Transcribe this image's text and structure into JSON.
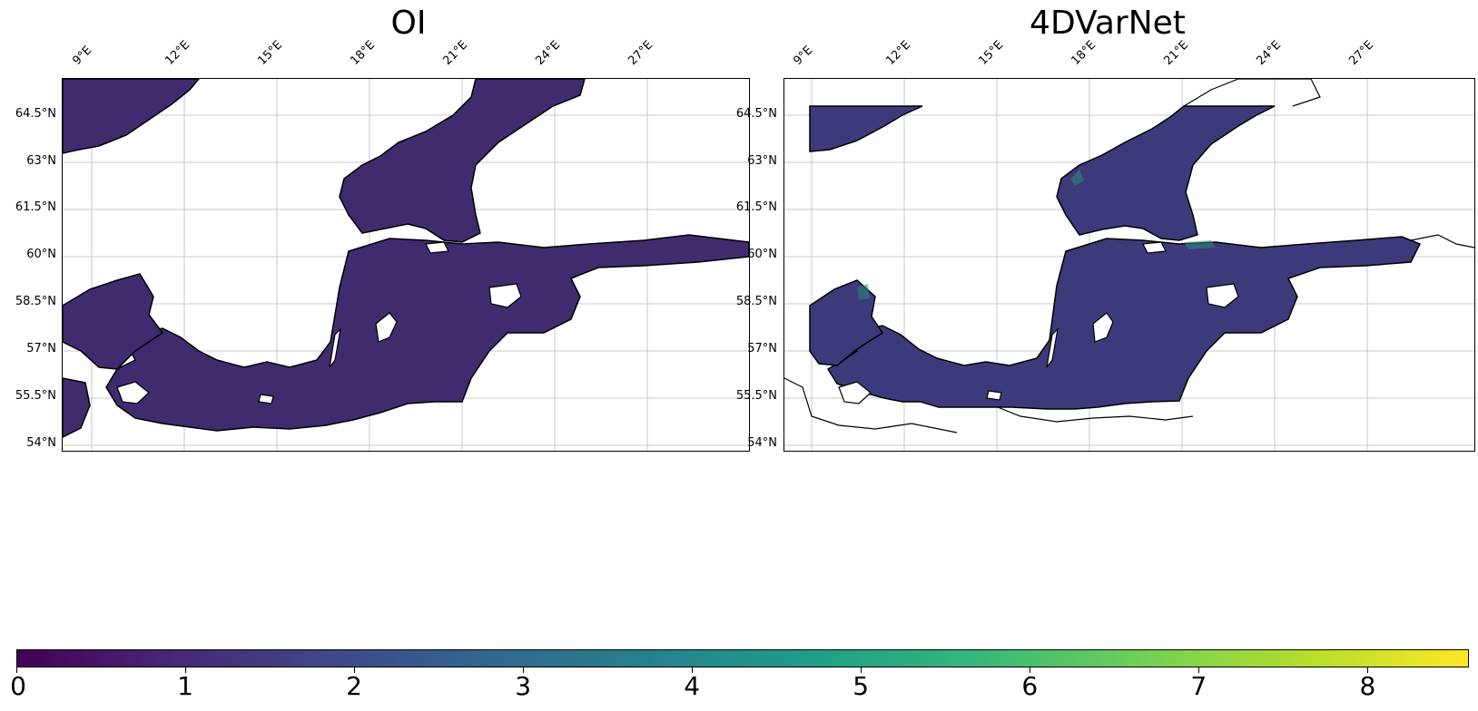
{
  "panels": [
    {
      "title": "OI"
    },
    {
      "title": "4DVarNet"
    }
  ],
  "lon_ticks": [
    "9°E",
    "12°E",
    "15°E",
    "18°E",
    "21°E",
    "24°E",
    "27°E"
  ],
  "lat_ticks": [
    "64.5°N",
    "63°N",
    "61.5°N",
    "60°N",
    "58.5°N",
    "57°N",
    "55.5°N",
    "54°N"
  ],
  "colorbar": {
    "colormap": "viridis",
    "min": 0,
    "max": 8.6,
    "ticks": [
      "0",
      "1",
      "2",
      "3",
      "4",
      "5",
      "6",
      "7",
      "8"
    ]
  },
  "colors": {
    "sea_fill_oi": "#3f2b6e",
    "sea_fill_4dvarnet": "#3c3a7a",
    "highlight_4dvarnet": "#2a8a7a",
    "coastline": "#000000",
    "gridline": "#c8c8c8"
  }
}
